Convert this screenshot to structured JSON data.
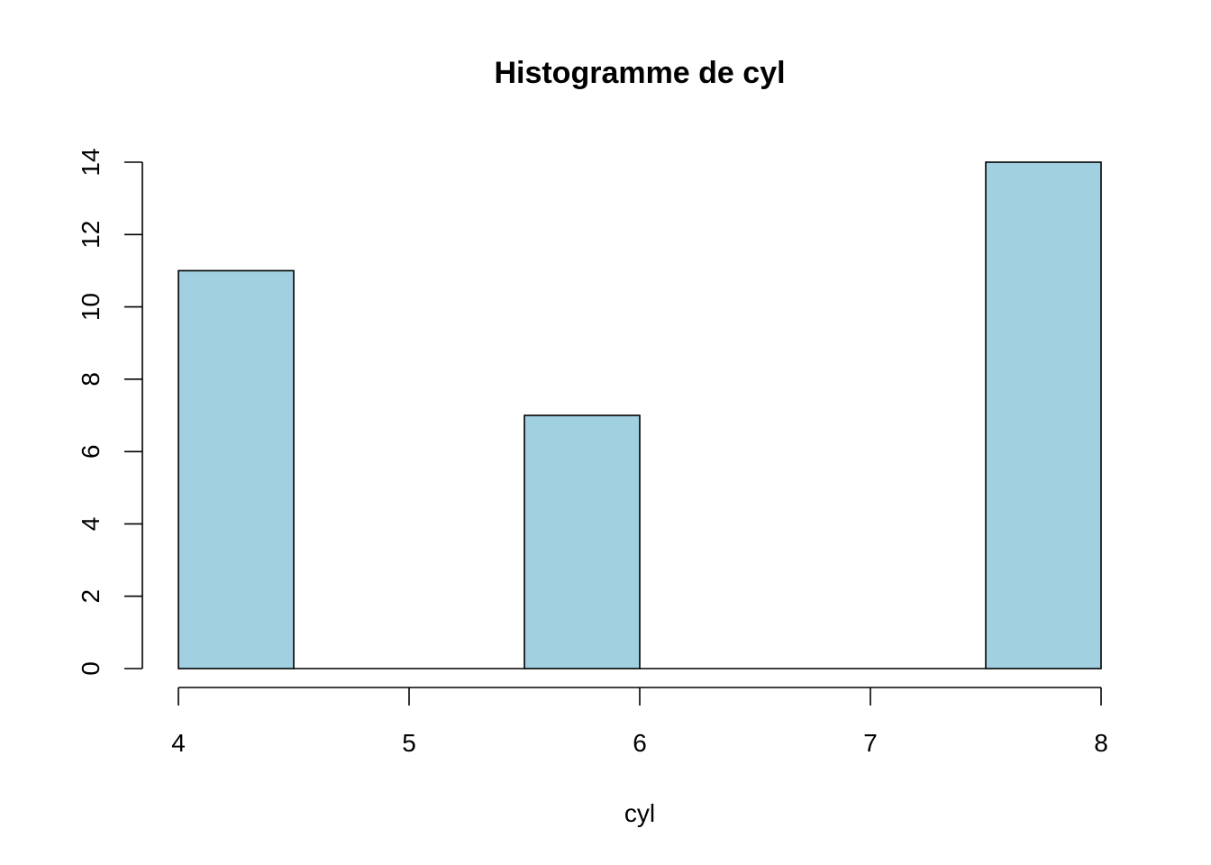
{
  "chart_data": {
    "type": "bar",
    "title": "Histogramme de cyl",
    "xlabel": "cyl",
    "ylabel": "",
    "bins": [
      {
        "from": 4.0,
        "to": 4.5,
        "count": 11
      },
      {
        "from": 4.5,
        "to": 5.0,
        "count": 0
      },
      {
        "from": 5.0,
        "to": 5.5,
        "count": 0
      },
      {
        "from": 5.5,
        "to": 6.0,
        "count": 7
      },
      {
        "from": 6.0,
        "to": 6.5,
        "count": 0
      },
      {
        "from": 6.5,
        "to": 7.0,
        "count": 0
      },
      {
        "from": 7.0,
        "to": 7.5,
        "count": 0
      },
      {
        "from": 7.5,
        "to": 8.0,
        "count": 14
      }
    ],
    "xlim": [
      4,
      8
    ],
    "ylim": [
      0,
      14
    ],
    "xticks": [
      "4",
      "5",
      "6",
      "7",
      "8"
    ],
    "yticks": [
      "0",
      "2",
      "4",
      "6",
      "8",
      "10",
      "12",
      "14"
    ],
    "bar_color": "#a1d0e1",
    "grid": false,
    "legend": "none"
  }
}
